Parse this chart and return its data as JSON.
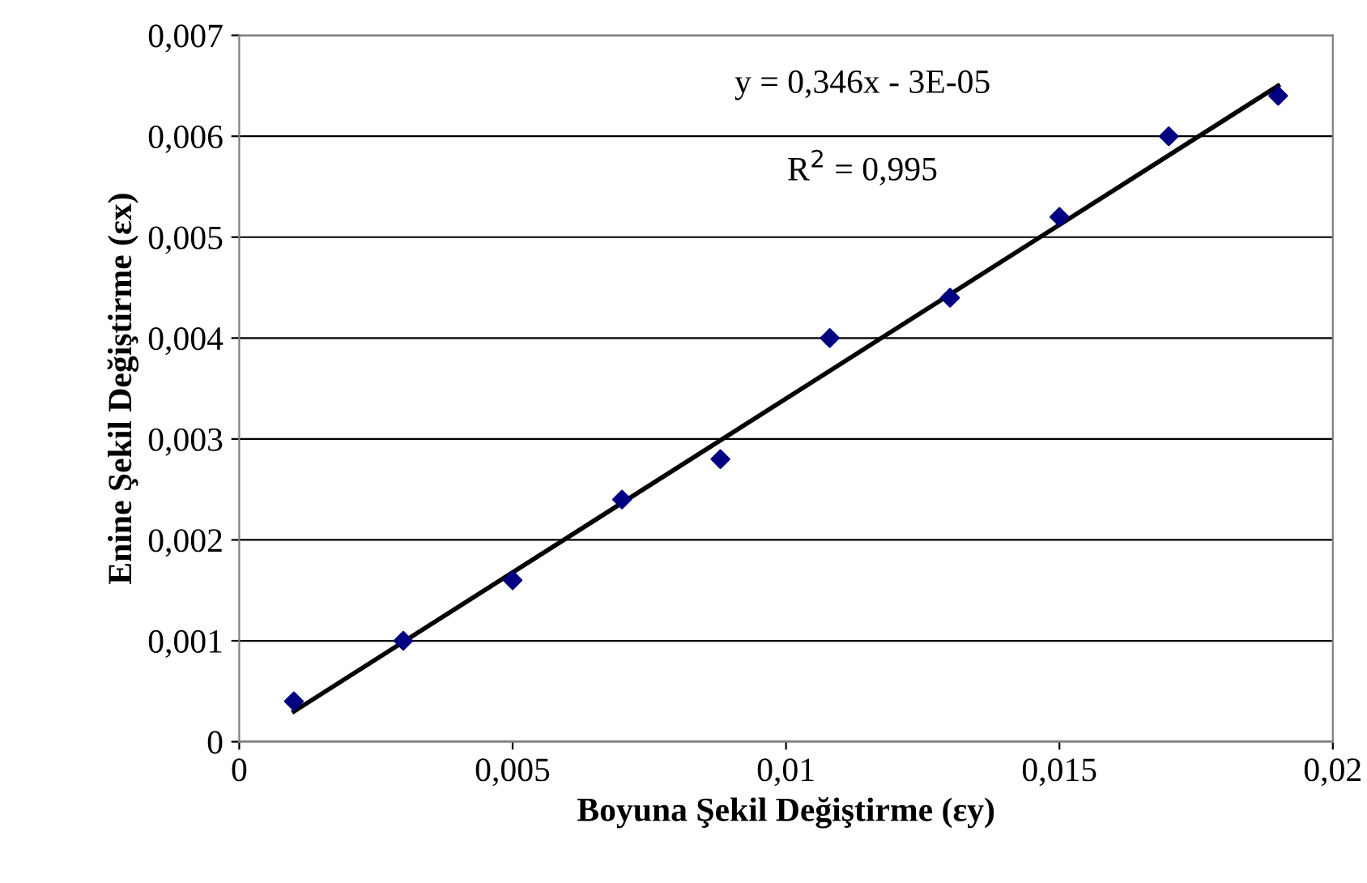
{
  "chart_data": {
    "type": "scatter",
    "xlabel": "Boyuna Şekil Değiştirme (εy)",
    "ylabel": "Enine Şekil Değiştirme (εx)",
    "series": [
      {
        "color": "#000080",
        "marker": "diamond",
        "x": [
          0.001,
          0.003,
          0.005,
          0.007,
          0.0088,
          0.0108,
          0.013,
          0.015,
          0.017,
          0.019
        ],
        "values": [
          0.0004,
          0.001,
          0.0016,
          0.0024,
          0.0028,
          0.004,
          0.0044,
          0.0052,
          0.006,
          0.0064
        ]
      },
      {
        "type": "line",
        "color": "#000000",
        "line_style": "solid",
        "marker": "none",
        "x": [
          0.001,
          0.019
        ],
        "values": [
          0.0003,
          0.0065
        ]
      }
    ],
    "annotations": [
      "y = 0,346x - 3E-05",
      "R$^{2}$ = 0,995"
    ],
    "xlim": [
      0,
      0.02
    ],
    "xticks": [
      0,
      {
        "value": 0.005,
        "label": "0,005"
      },
      {
        "value": 0.01,
        "label": "0,01"
      },
      {
        "value": 0.015,
        "label": "0,015"
      },
      {
        "value": 0.02,
        "label": "0,02"
      }
    ],
    "ylim": [
      0,
      0.007
    ],
    "yticks": [
      0,
      {
        "value": 0.001,
        "label": "0,001"
      },
      {
        "value": 0.002,
        "label": "0,002"
      },
      {
        "value": 0.003,
        "label": "0,003"
      },
      {
        "value": 0.004,
        "label": "0,004"
      },
      {
        "value": 0.005,
        "label": "0,005"
      },
      {
        "value": 0.006,
        "label": "0,006"
      },
      {
        "value": 0.007,
        "label": "0,007"
      }
    ],
    "grid": "y",
    "legend": false
  }
}
